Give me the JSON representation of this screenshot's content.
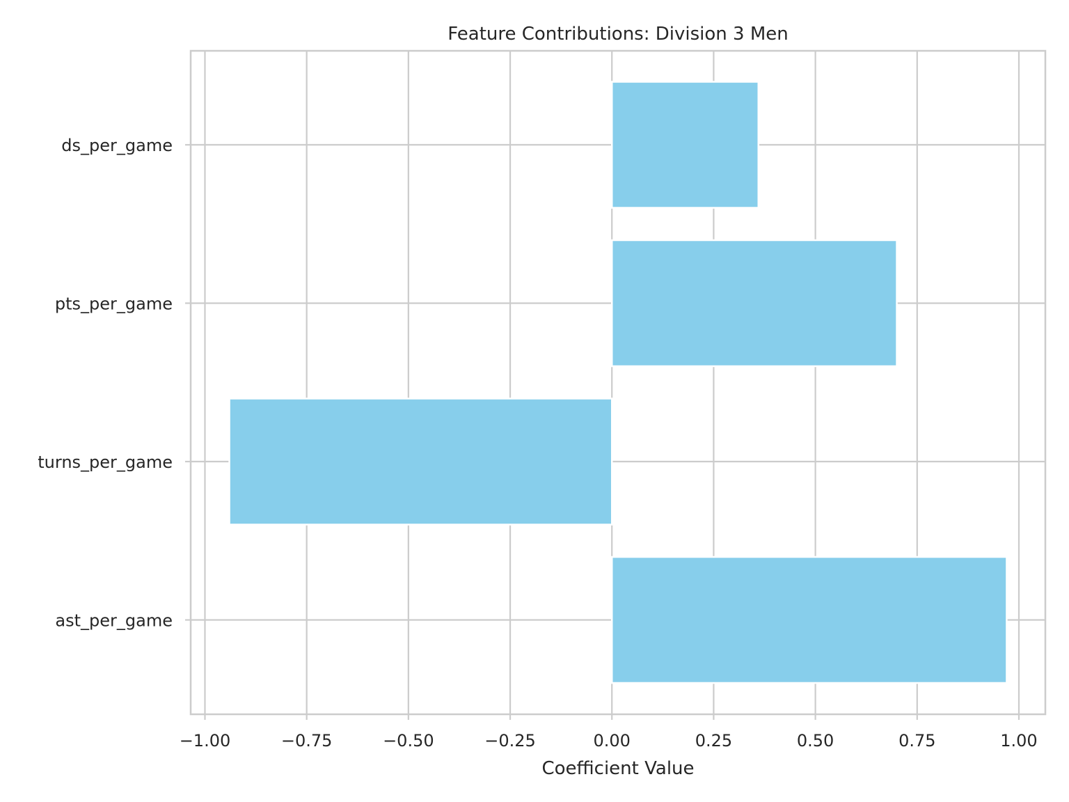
{
  "chart_data": {
    "type": "bar",
    "orientation": "horizontal",
    "title": "Feature Contributions: Division 3 Men",
    "xlabel": "Coefficient Value",
    "ylabel": "",
    "categories": [
      "ds_per_game",
      "pts_per_game",
      "turns_per_game",
      "ast_per_game"
    ],
    "values": [
      0.36,
      0.7,
      -0.94,
      0.97
    ],
    "xlim": [
      -1.035,
      1.065
    ],
    "xticks": [
      -1.0,
      -0.75,
      -0.5,
      -0.25,
      0.0,
      0.25,
      0.5,
      0.75,
      1.0
    ],
    "xtick_labels": [
      "−1.00",
      "−0.75",
      "−0.50",
      "−0.25",
      "0.00",
      "0.25",
      "0.50",
      "0.75",
      "1.00"
    ],
    "grid": true,
    "bar_color": "#87CEEB",
    "grid_color": "#cccccc"
  }
}
